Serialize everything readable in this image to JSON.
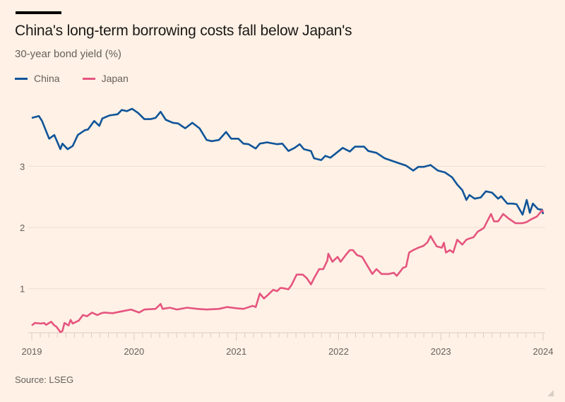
{
  "title": "China's long-term borrowing costs fall below Japan's",
  "subtitle": "30-year bond yield (%)",
  "source": "Source: LSEG",
  "colors": {
    "background": "#fff1e5",
    "china": "#0f5499",
    "japan": "#e5557f",
    "grid": "#eddfd3"
  },
  "chart_data": {
    "type": "line",
    "title": "China's long-term borrowing costs fall below Japan's",
    "ylabel": "30-year bond yield (%)",
    "xlabel": "",
    "xlim": [
      2019.0,
      2024.0
    ],
    "ylim": [
      0.28,
      4.1
    ],
    "x_ticks": [
      2019,
      2020,
      2021,
      2022,
      2023,
      2024
    ],
    "x_tick_labels": [
      "2019",
      "2020",
      "2021",
      "2022",
      "2023",
      "2024"
    ],
    "y_ticks": [
      1,
      2,
      3
    ],
    "y_tick_labels": [
      "1",
      "2",
      "3"
    ],
    "grid": true,
    "legend_position": "top-left",
    "series": [
      {
        "name": "China",
        "x": [
          2019.0,
          2019.07,
          2019.1,
          2019.17,
          2019.22,
          2019.28,
          2019.3,
          2019.35,
          2019.4,
          2019.45,
          2019.52,
          2019.55,
          2019.61,
          2019.66,
          2019.69,
          2019.76,
          2019.84,
          2019.88,
          2019.93,
          2019.98,
          2020.04,
          2020.1,
          2020.16,
          2020.21,
          2020.26,
          2020.31,
          2020.38,
          2020.43,
          2020.5,
          2020.57,
          2020.64,
          2020.71,
          2020.76,
          2020.83,
          2020.9,
          2020.95,
          2021.02,
          2021.07,
          2021.12,
          2021.19,
          2021.23,
          2021.3,
          2021.4,
          2021.45,
          2021.51,
          2021.57,
          2021.62,
          2021.66,
          2021.73,
          2021.76,
          2021.83,
          2021.87,
          2021.92,
          2021.98,
          2022.04,
          2022.11,
          2022.16,
          2022.25,
          2022.29,
          2022.37,
          2022.45,
          2022.52,
          2022.59,
          2022.66,
          2022.73,
          2022.78,
          2022.83,
          2022.9,
          2022.97,
          2023.04,
          2023.11,
          2023.16,
          2023.21,
          2023.25,
          2023.28,
          2023.33,
          2023.39,
          2023.44,
          2023.5,
          2023.56,
          2023.59,
          2023.65,
          2023.7,
          2023.74,
          2023.8,
          2023.84,
          2023.87,
          2023.9,
          2023.95,
          2023.99,
          2024.0
        ],
        "values": [
          3.79,
          3.82,
          3.74,
          3.45,
          3.51,
          3.28,
          3.37,
          3.28,
          3.33,
          3.51,
          3.59,
          3.6,
          3.74,
          3.66,
          3.78,
          3.83,
          3.85,
          3.92,
          3.9,
          3.94,
          3.87,
          3.77,
          3.77,
          3.79,
          3.89,
          3.76,
          3.71,
          3.7,
          3.62,
          3.71,
          3.62,
          3.43,
          3.41,
          3.43,
          3.56,
          3.45,
          3.45,
          3.37,
          3.36,
          3.29,
          3.37,
          3.39,
          3.36,
          3.37,
          3.25,
          3.3,
          3.36,
          3.28,
          3.25,
          3.13,
          3.1,
          3.17,
          3.14,
          3.22,
          3.3,
          3.24,
          3.32,
          3.32,
          3.25,
          3.22,
          3.13,
          3.09,
          3.05,
          3.01,
          2.93,
          2.99,
          2.99,
          3.02,
          2.93,
          2.9,
          2.82,
          2.7,
          2.61,
          2.45,
          2.53,
          2.47,
          2.49,
          2.59,
          2.57,
          2.47,
          2.51,
          2.39,
          2.39,
          2.38,
          2.21,
          2.45,
          2.24,
          2.39,
          2.3,
          2.29,
          2.22
        ]
      },
      {
        "name": "Japan",
        "x": [
          2019.0,
          2019.03,
          2019.09,
          2019.12,
          2019.14,
          2019.19,
          2019.22,
          2019.24,
          2019.28,
          2019.3,
          2019.32,
          2019.36,
          2019.38,
          2019.4,
          2019.46,
          2019.5,
          2019.54,
          2019.59,
          2019.64,
          2019.68,
          2019.71,
          2019.79,
          2019.88,
          2019.97,
          2020.05,
          2020.1,
          2020.21,
          2020.26,
          2020.28,
          2020.35,
          2020.42,
          2020.52,
          2020.62,
          2020.71,
          2020.83,
          2020.91,
          2021.0,
          2021.07,
          2021.16,
          2021.19,
          2021.23,
          2021.27,
          2021.31,
          2021.36,
          2021.4,
          2021.43,
          2021.45,
          2021.51,
          2021.54,
          2021.59,
          2021.65,
          2021.69,
          2021.73,
          2021.76,
          2021.81,
          2021.85,
          2021.89,
          2021.9,
          2021.94,
          2021.99,
          2022.02,
          2022.07,
          2022.11,
          2022.14,
          2022.18,
          2022.23,
          2022.28,
          2022.33,
          2022.37,
          2022.42,
          2022.49,
          2022.54,
          2022.57,
          2022.63,
          2022.66,
          2022.69,
          2022.73,
          2022.78,
          2022.83,
          2022.87,
          2022.9,
          2022.92,
          2022.96,
          2023.01,
          2023.03,
          2023.05,
          2023.09,
          2023.12,
          2023.16,
          2023.21,
          2023.25,
          2023.28,
          2023.32,
          2023.36,
          2023.42,
          2023.45,
          2023.49,
          2023.52,
          2023.56,
          2023.61,
          2023.66,
          2023.73,
          2023.77,
          2023.8,
          2023.84,
          2023.88,
          2023.94,
          2023.99,
          2024.0
        ],
        "values": [
          0.4,
          0.44,
          0.43,
          0.44,
          0.41,
          0.46,
          0.4,
          0.38,
          0.29,
          0.31,
          0.44,
          0.4,
          0.49,
          0.43,
          0.48,
          0.57,
          0.55,
          0.61,
          0.57,
          0.6,
          0.61,
          0.6,
          0.63,
          0.66,
          0.61,
          0.66,
          0.67,
          0.75,
          0.67,
          0.69,
          0.66,
          0.69,
          0.67,
          0.66,
          0.67,
          0.7,
          0.68,
          0.67,
          0.72,
          0.7,
          0.92,
          0.84,
          0.9,
          0.98,
          0.96,
          1.01,
          1.01,
          0.99,
          1.06,
          1.23,
          1.23,
          1.17,
          1.07,
          1.17,
          1.32,
          1.32,
          1.46,
          1.57,
          1.44,
          1.52,
          1.44,
          1.55,
          1.63,
          1.63,
          1.55,
          1.52,
          1.38,
          1.24,
          1.32,
          1.24,
          1.24,
          1.26,
          1.21,
          1.34,
          1.36,
          1.59,
          1.63,
          1.67,
          1.7,
          1.76,
          1.86,
          1.8,
          1.69,
          1.67,
          1.75,
          1.59,
          1.63,
          1.59,
          1.8,
          1.72,
          1.8,
          1.82,
          1.84,
          1.93,
          1.99,
          2.09,
          2.22,
          2.1,
          2.1,
          2.22,
          2.15,
          2.07,
          2.07,
          2.07,
          2.09,
          2.13,
          2.18,
          2.28,
          2.25
        ]
      }
    ]
  }
}
